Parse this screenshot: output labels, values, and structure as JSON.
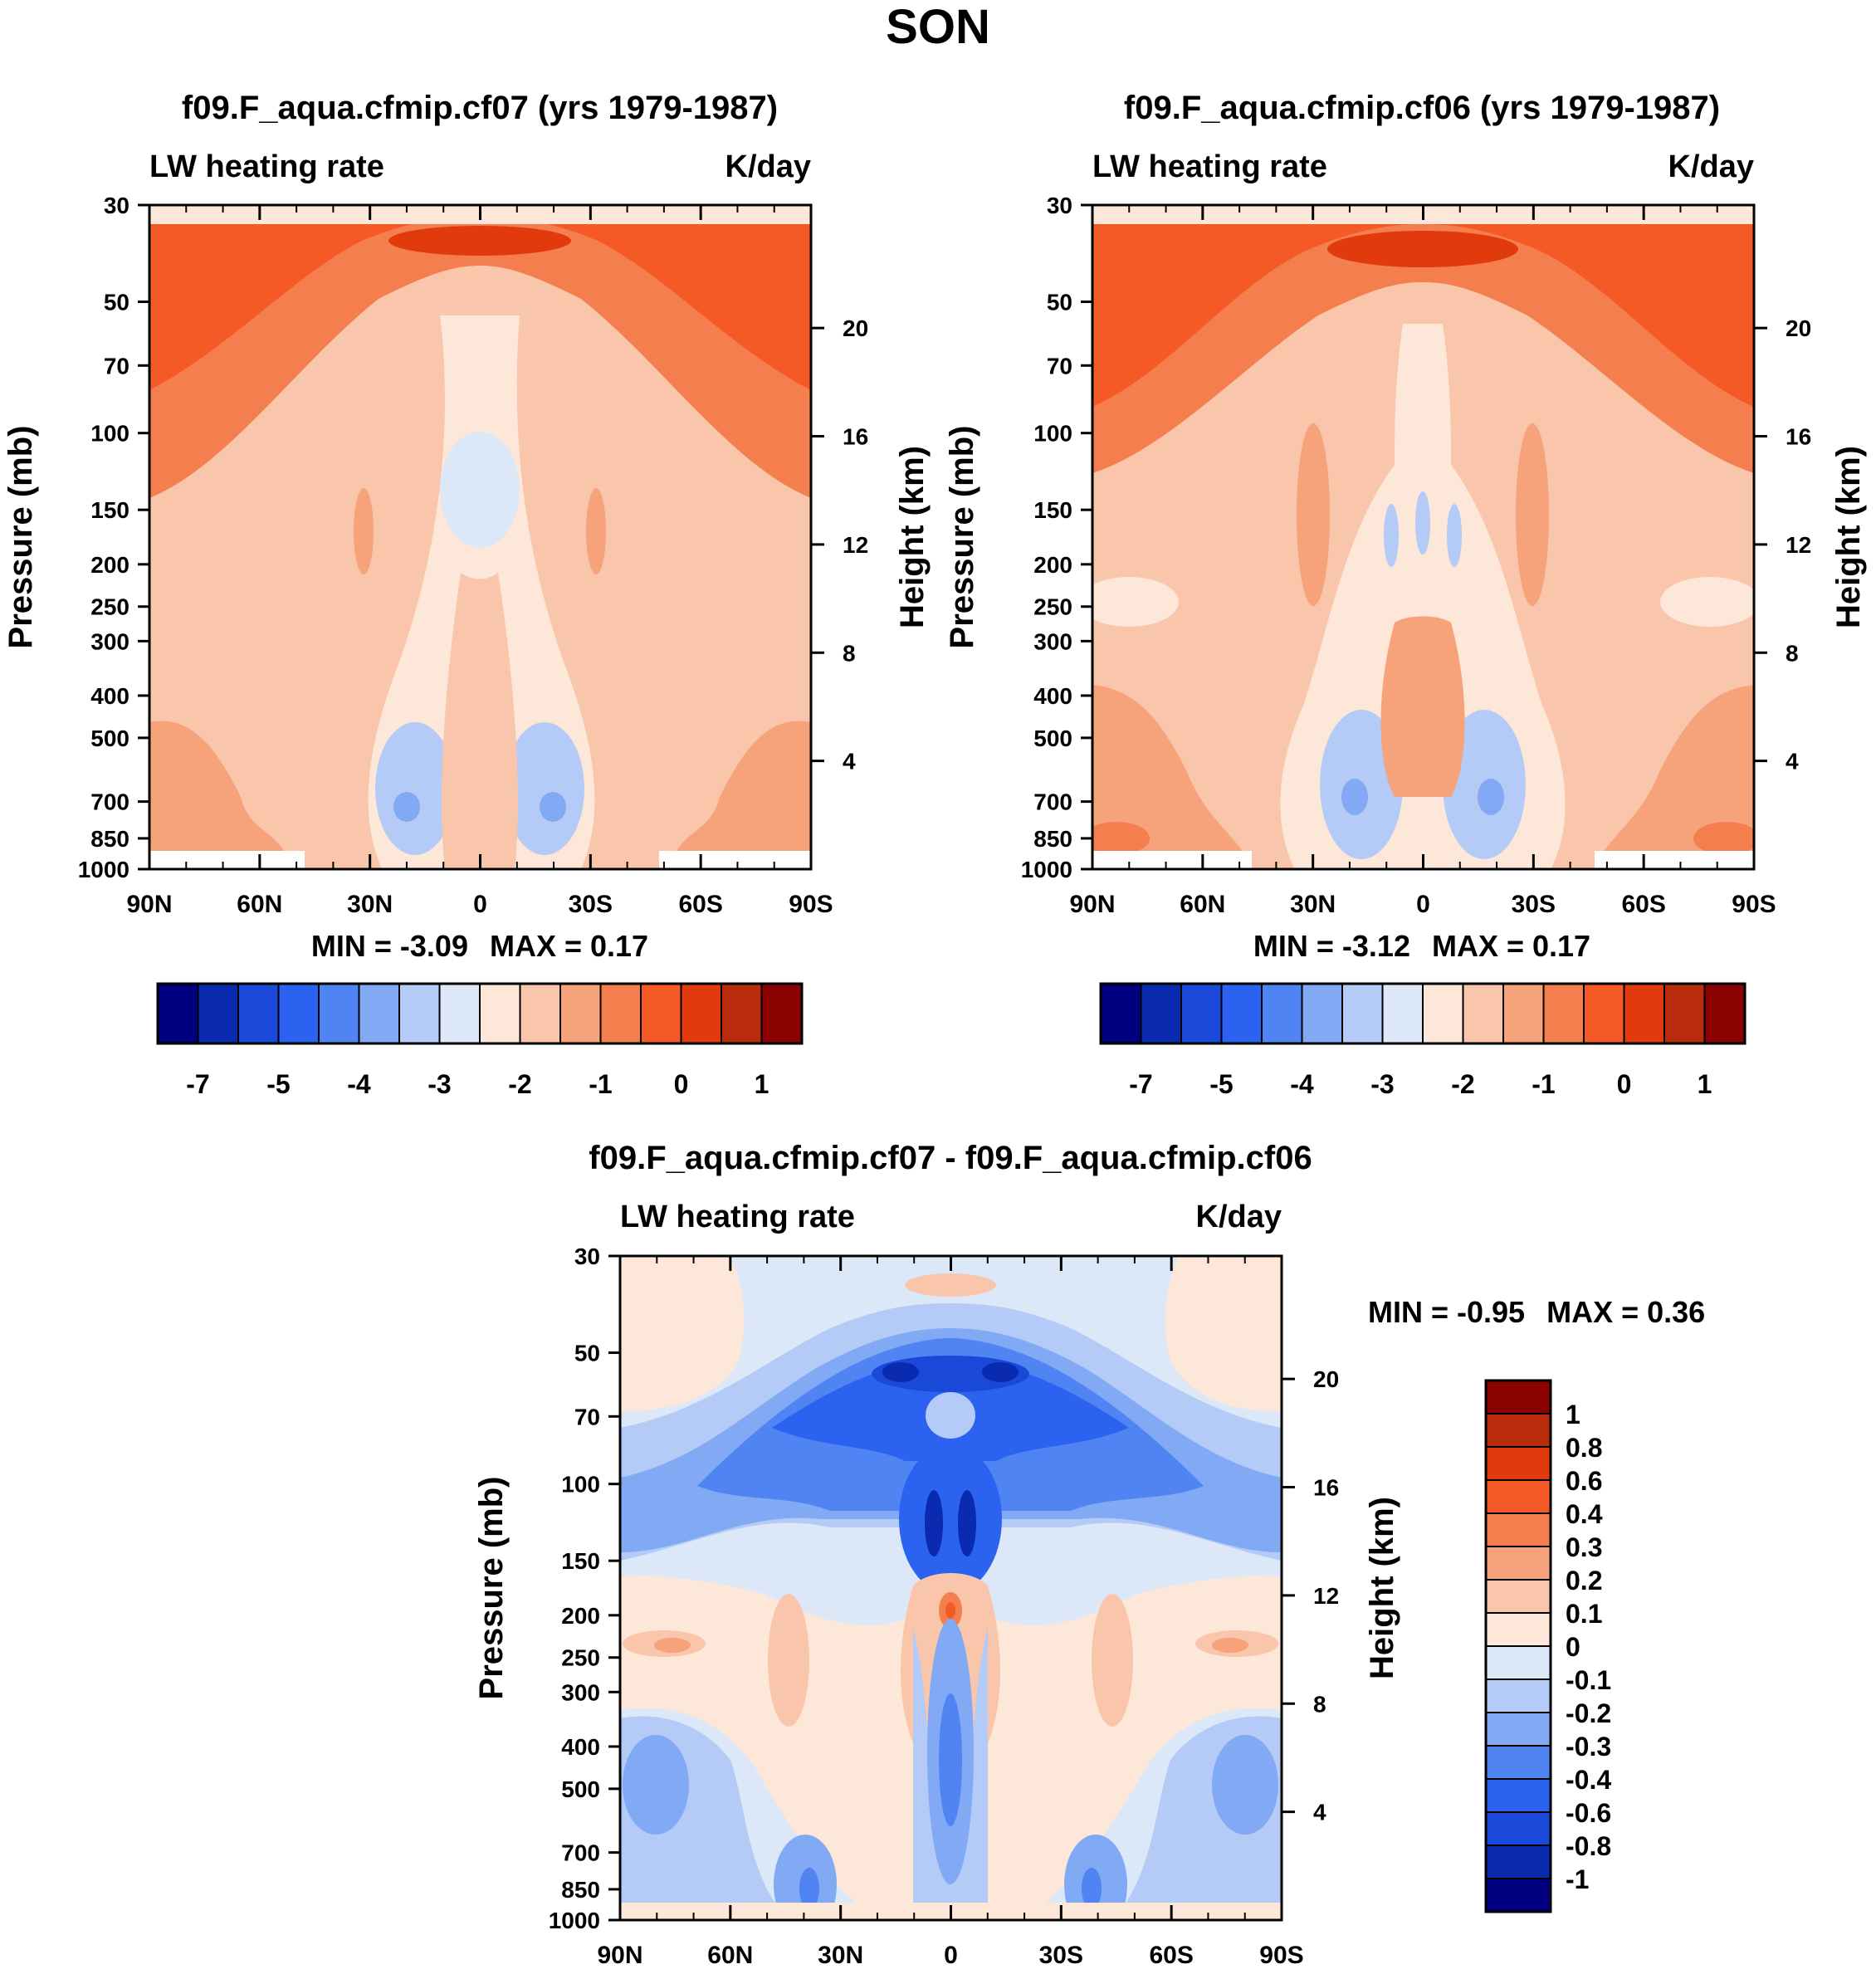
{
  "title": "SON",
  "chart_data": [
    {
      "type": "heatmap",
      "title": "f09.F_aqua.cfmip.cf07 (yrs 1979-1987)",
      "variable": "LW heating rate",
      "units": "K/day",
      "xlabel": "",
      "ylabel": "Pressure (mb)",
      "ylabel_right": "Height (km)",
      "x_ticks": [
        "90N",
        "60N",
        "30N",
        "0",
        "30S",
        "60S",
        "90S"
      ],
      "y_ticks": [
        "30",
        "50",
        "70",
        "100",
        "150",
        "200",
        "250",
        "300",
        "400",
        "500",
        "700",
        "850",
        "1000"
      ],
      "height_ticks": [
        "20",
        "16",
        "12",
        "8",
        "4"
      ],
      "min_label": "MIN = -3.09",
      "max_label": "MAX = 0.17",
      "colorbar_labels": [
        "-7",
        "-5",
        "-4",
        "-3",
        "-2",
        "-1",
        "0",
        "1"
      ],
      "colorbar_levels": [
        -8,
        -7,
        -6,
        -5,
        -4,
        -3,
        -2.5,
        -2,
        -1.5,
        -1,
        -0.5,
        0,
        0.5,
        1,
        1.5,
        2
      ],
      "ylim": [
        1000,
        30
      ]
    },
    {
      "type": "heatmap",
      "title": "f09.F_aqua.cfmip.cf06 (yrs 1979-1987)",
      "variable": "LW heating rate",
      "units": "K/day",
      "xlabel": "",
      "ylabel": "Pressure (mb)",
      "ylabel_right": "Height (km)",
      "x_ticks": [
        "90N",
        "60N",
        "30N",
        "0",
        "30S",
        "60S",
        "90S"
      ],
      "y_ticks": [
        "30",
        "50",
        "70",
        "100",
        "150",
        "200",
        "250",
        "300",
        "400",
        "500",
        "700",
        "850",
        "1000"
      ],
      "height_ticks": [
        "20",
        "16",
        "12",
        "8",
        "4"
      ],
      "min_label": "MIN = -3.12",
      "max_label": "MAX = 0.17",
      "colorbar_labels": [
        "-7",
        "-5",
        "-4",
        "-3",
        "-2",
        "-1",
        "0",
        "1"
      ],
      "colorbar_levels": [
        -8,
        -7,
        -6,
        -5,
        -4,
        -3,
        -2.5,
        -2,
        -1.5,
        -1,
        -0.5,
        0,
        0.5,
        1,
        1.5,
        2
      ],
      "ylim": [
        1000,
        30
      ]
    },
    {
      "type": "heatmap",
      "title": "f09.F_aqua.cfmip.cf07 - f09.F_aqua.cfmip.cf06",
      "variable": "LW heating rate",
      "units": "K/day",
      "xlabel": "",
      "ylabel": "Pressure (mb)",
      "ylabel_right": "Height (km)",
      "x_ticks": [
        "90N",
        "60N",
        "30N",
        "0",
        "30S",
        "60S",
        "90S"
      ],
      "y_ticks": [
        "30",
        "50",
        "70",
        "100",
        "150",
        "200",
        "250",
        "300",
        "400",
        "500",
        "700",
        "850",
        "1000"
      ],
      "height_ticks": [
        "20",
        "16",
        "12",
        "8",
        "4"
      ],
      "min_label": "MIN = -0.95",
      "max_label": "MAX = 0.36",
      "colorbar_labels": [
        "1",
        "0.8",
        "0.6",
        "0.4",
        "0.3",
        "0.2",
        "0.1",
        "0",
        "-0.1",
        "-0.2",
        "-0.3",
        "-0.4",
        "-0.6",
        "-0.8",
        "-1"
      ],
      "ylim": [
        1000,
        30
      ]
    }
  ],
  "colors": {
    "scale": [
      "#000080",
      "#0a2ab0",
      "#1a48d8",
      "#2b62ef",
      "#4f84f2",
      "#82a9f4",
      "#b3cbf6",
      "#dce8f8",
      "#fde7d8",
      "#f9c6ab",
      "#f6a27b",
      "#f57e4e",
      "#f55a26",
      "#e13a0c",
      "#b82b0b",
      "#8b0000"
    ],
    "diff_scale": [
      "#8b0000",
      "#b82b0b",
      "#e13a0c",
      "#f55a26",
      "#f57e4e",
      "#f6a27b",
      "#f9c6ab",
      "#fde7d8",
      "#dce8f8",
      "#b3cbf6",
      "#82a9f4",
      "#4f84f2",
      "#2b62ef",
      "#1a48d8",
      "#0a2ab0",
      "#000080"
    ]
  }
}
